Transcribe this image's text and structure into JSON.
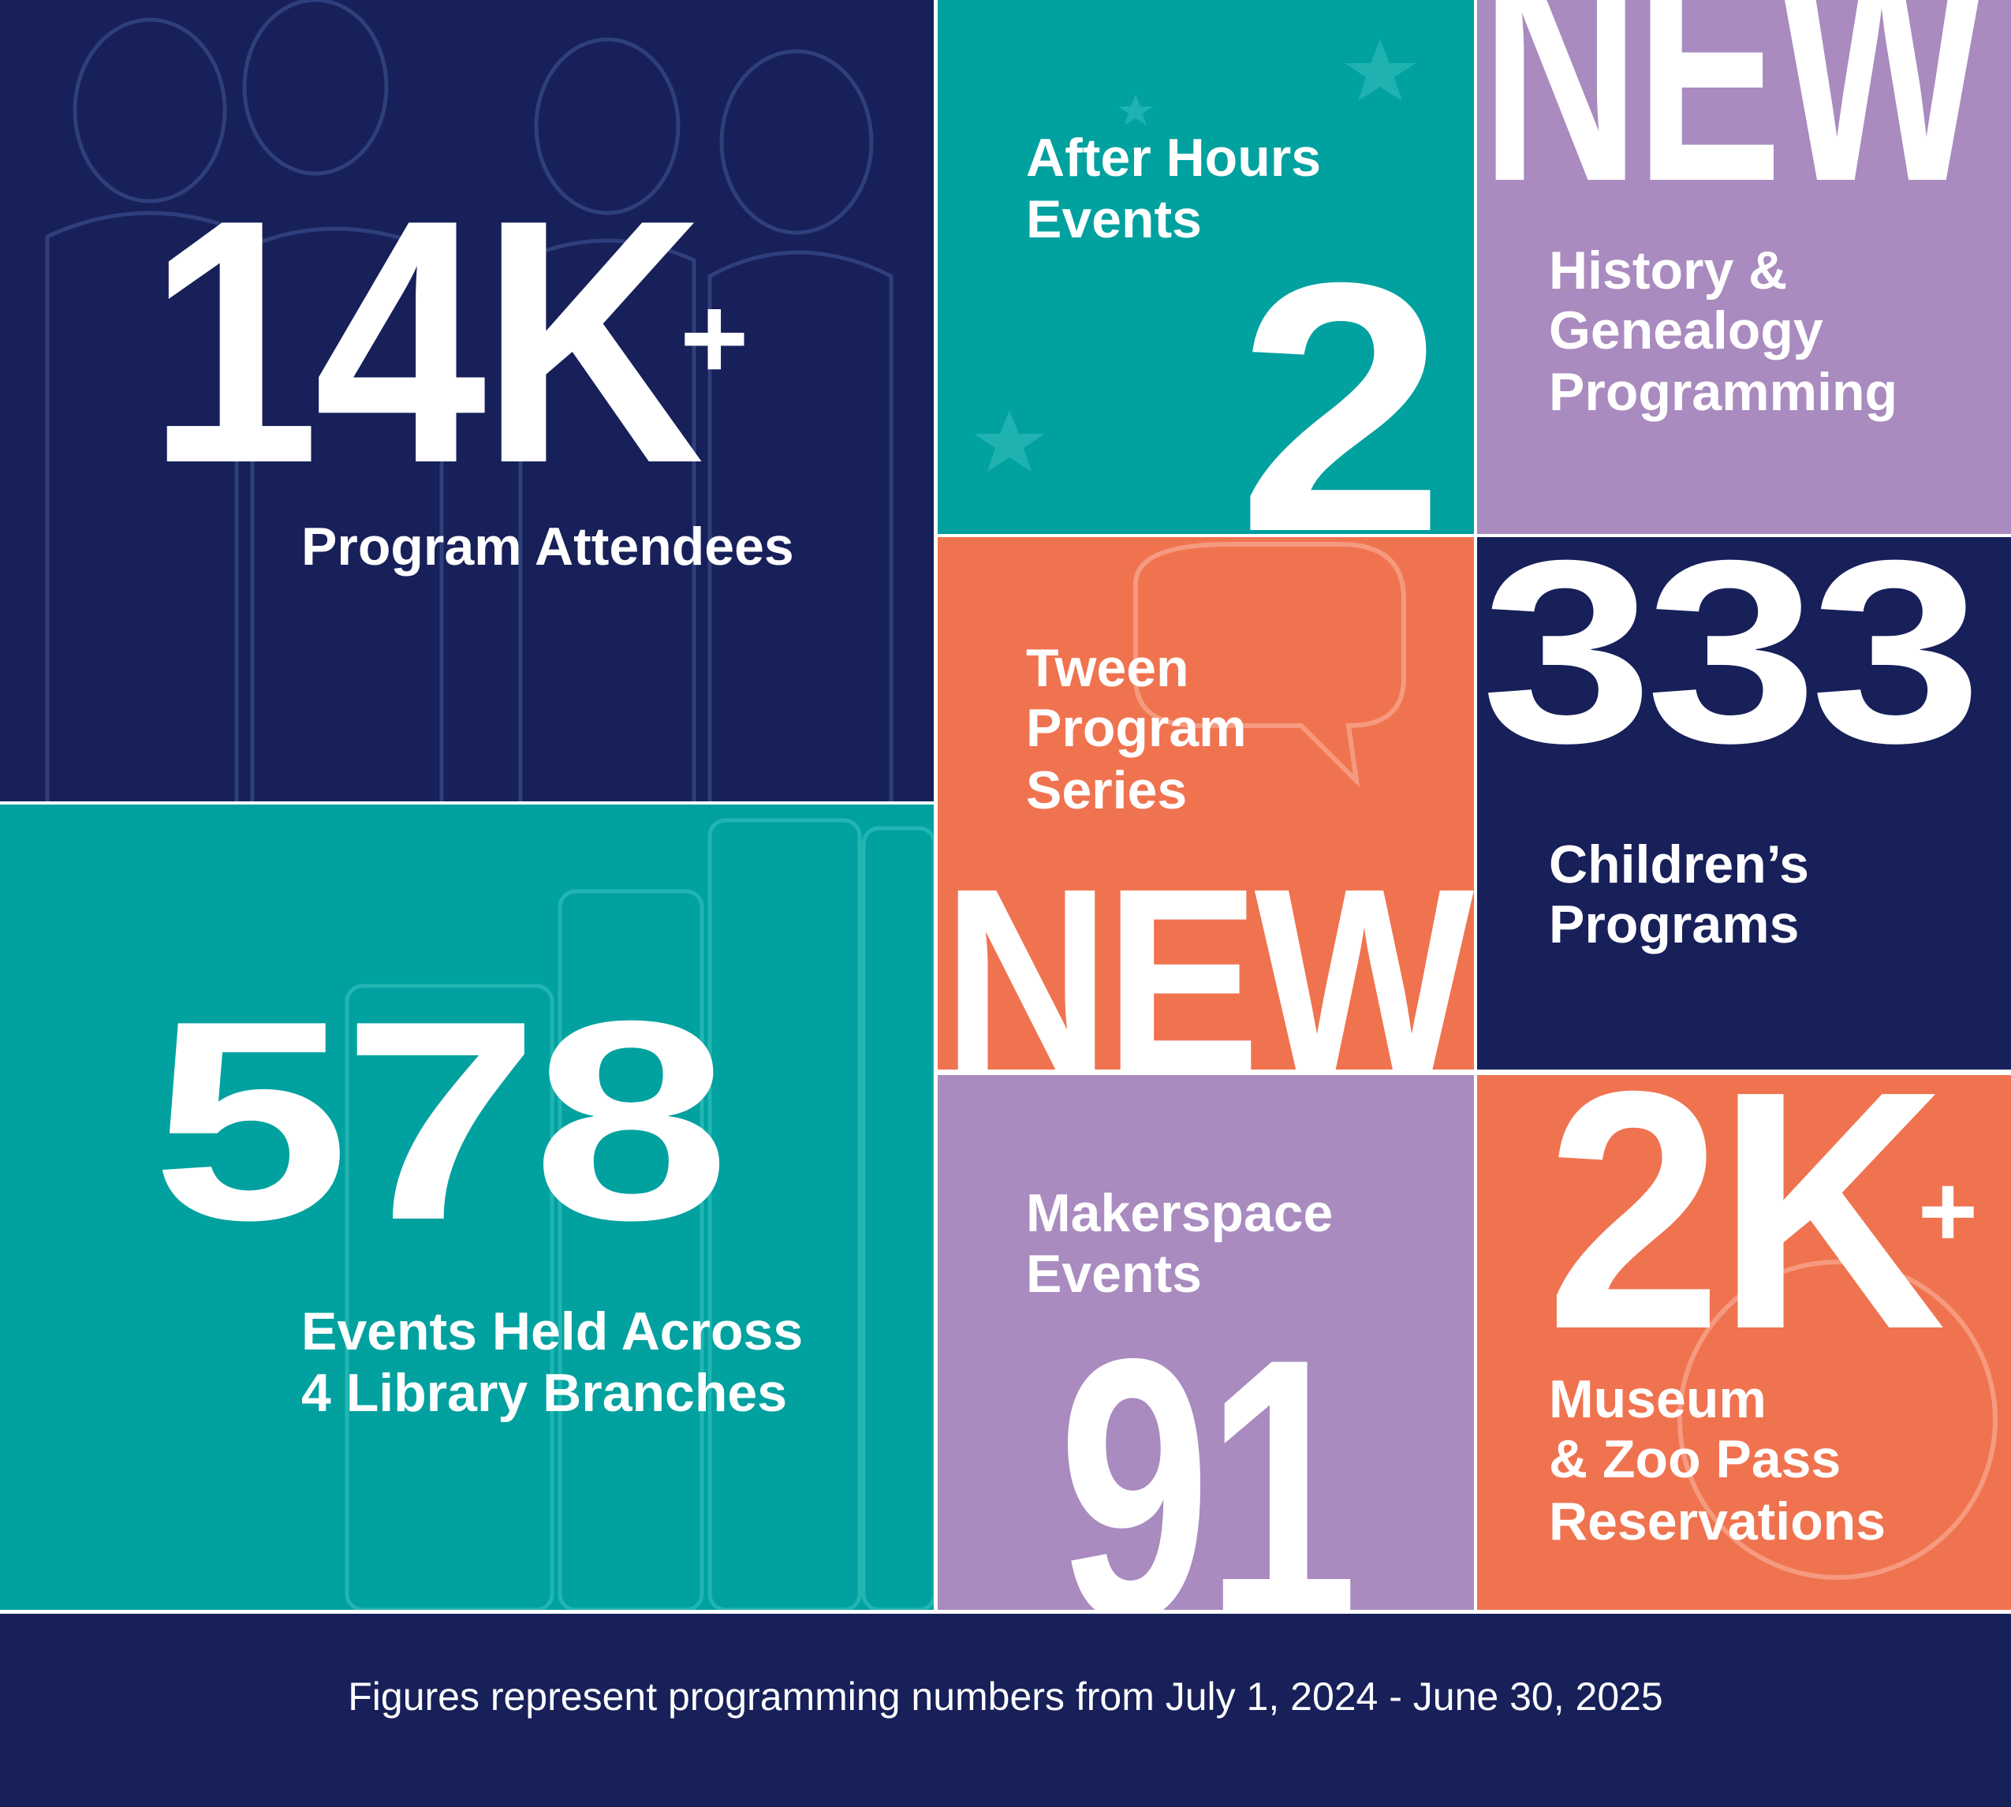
{
  "tiles": [
    {
      "stat": "14K",
      "suffix": "+",
      "label": [
        "Program Attendees"
      ]
    },
    {
      "stat": "578",
      "label": [
        "Events Held Across",
        "4 Library Branches"
      ]
    },
    {
      "stat": "2",
      "label": [
        "After Hours",
        "Events"
      ]
    },
    {
      "badge": "NEW",
      "label": [
        "History &",
        "Genealogy",
        "Programming"
      ]
    },
    {
      "badge": "NEW",
      "label": [
        "Tween",
        "Program",
        "Series"
      ]
    },
    {
      "stat": "333",
      "label": [
        "Children’s",
        "Programs"
      ]
    },
    {
      "stat": "91",
      "label": [
        "Makerspace",
        "Events"
      ]
    },
    {
      "stat": "2K",
      "suffix": "+",
      "label": [
        "Museum",
        "& Zoo Pass",
        "Reservations"
      ]
    }
  ],
  "footer": "Figures represent programming numbers from July 1, 2024 - June 30, 2025"
}
